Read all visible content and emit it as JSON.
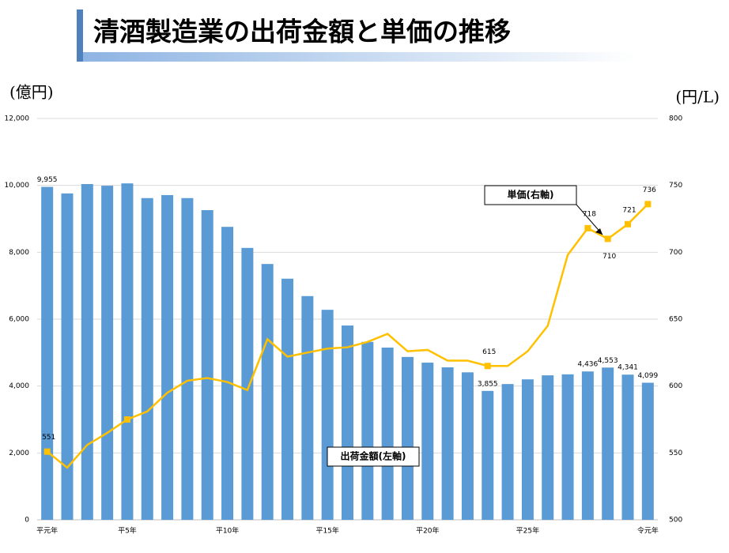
{
  "chart_data": {
    "type": "bar-line",
    "title": "清酒製造業の出荷金額と単価の推移",
    "y_label": "(億円)",
    "y2_label": "(円/L)",
    "categories": [
      "平元年",
      null,
      null,
      null,
      "平5年",
      null,
      null,
      null,
      null,
      "平10年",
      null,
      null,
      null,
      null,
      "平15年",
      null,
      null,
      null,
      null,
      "平20年",
      null,
      null,
      null,
      null,
      "平25年",
      null,
      null,
      null,
      null,
      null,
      "令元年"
    ],
    "series": [
      {
        "name": "出荷金額(左軸)",
        "type": "bar",
        "color": "#5b9bd5",
        "values": [
          9955,
          9760,
          10040,
          9990,
          10060,
          9620,
          9710,
          9620,
          9260,
          8760,
          8130,
          7650,
          7210,
          6690,
          6280,
          5810,
          5320,
          5150,
          4870,
          4700,
          4560,
          4410,
          3855,
          4060,
          4200,
          4320,
          4350,
          4436,
          4553,
          4341,
          4099
        ],
        "value_labels": [
          "9,955",
          null,
          null,
          null,
          null,
          null,
          null,
          null,
          null,
          null,
          null,
          null,
          null,
          null,
          null,
          null,
          null,
          null,
          null,
          null,
          null,
          null,
          "3,855",
          null,
          null,
          null,
          null,
          "4,436",
          "4,553",
          "4,341",
          "4,099"
        ]
      },
      {
        "name": "単価(右軸)",
        "type": "line",
        "axis": "y2",
        "color": "#ffc000",
        "values": [
          551,
          539,
          556,
          565,
          575,
          581,
          595,
          604,
          606,
          603,
          597,
          635,
          622,
          625,
          628,
          629,
          633,
          639,
          626,
          627,
          619,
          619,
          615,
          615,
          626,
          645,
          698,
          718,
          710,
          721,
          736
        ],
        "value_labels": [
          "551",
          null,
          null,
          null,
          null,
          null,
          null,
          null,
          null,
          null,
          null,
          null,
          null,
          null,
          null,
          null,
          null,
          null,
          null,
          null,
          null,
          null,
          "615",
          null,
          null,
          null,
          null,
          "718",
          "710",
          "721",
          "736"
        ],
        "marker_indices": [
          0,
          4,
          22,
          27,
          28,
          29,
          30
        ]
      }
    ],
    "ylim": [
      0,
      12000
    ],
    "yticks": [
      0,
      {
        "value": 2000,
        "label": "2,000"
      },
      {
        "value": 4000,
        "label": "4,000"
      },
      {
        "value": 6000,
        "label": "6,000"
      },
      {
        "value": 8000,
        "label": "8,000"
      },
      {
        "value": 10000,
        "label": "10,000"
      },
      {
        "value": 12000,
        "label": "12,000"
      }
    ],
    "y2lim": [
      500,
      800
    ],
    "y2ticks": [
      500,
      550,
      600,
      650,
      700,
      750,
      800
    ],
    "grid": true
  }
}
